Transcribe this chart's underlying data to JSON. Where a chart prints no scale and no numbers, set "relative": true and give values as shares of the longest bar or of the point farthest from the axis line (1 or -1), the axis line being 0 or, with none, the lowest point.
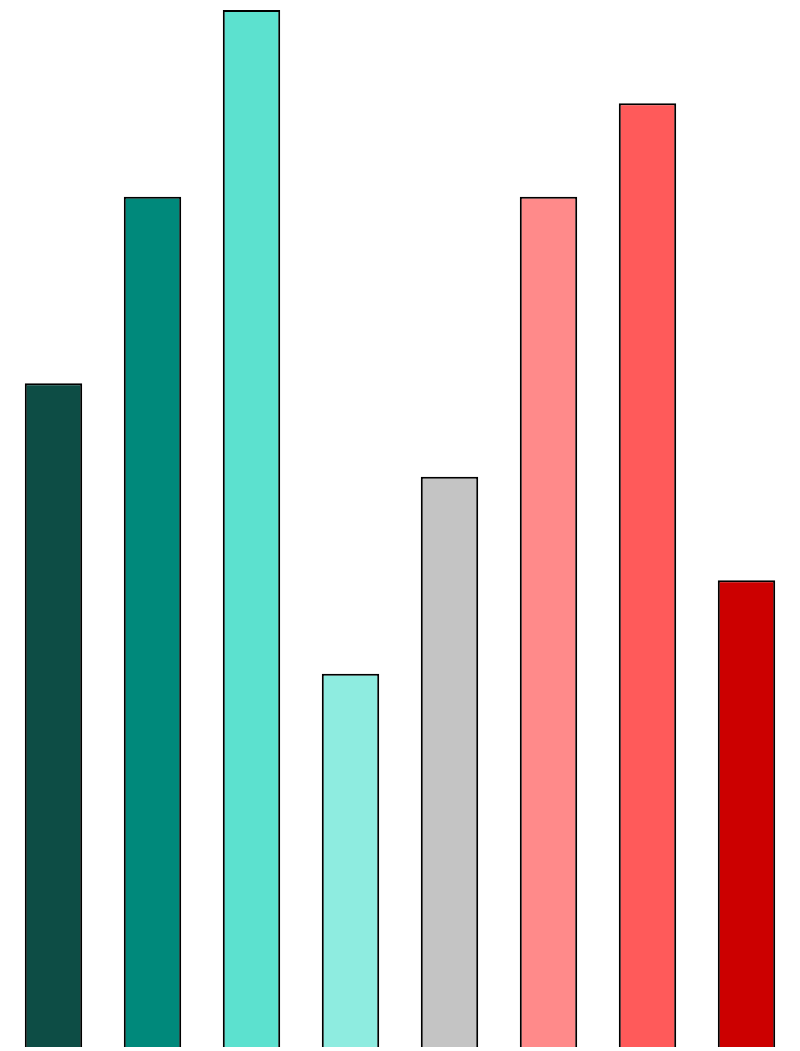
{
  "chart_data": {
    "type": "bar",
    "relative": true,
    "categories": [
      null,
      null,
      null,
      null,
      null,
      null,
      null,
      null
    ],
    "values": [
      0.64,
      0.82,
      1,
      0.36,
      0.55,
      0.82,
      0.91,
      0.45
    ],
    "colors": [
      "#0d4d45",
      "#00897b",
      "#5ce1cf",
      "#8eece0",
      "#c4c4c4",
      "#ff8a8a",
      "#ff5a5a",
      "#cc0000"
    ]
  }
}
